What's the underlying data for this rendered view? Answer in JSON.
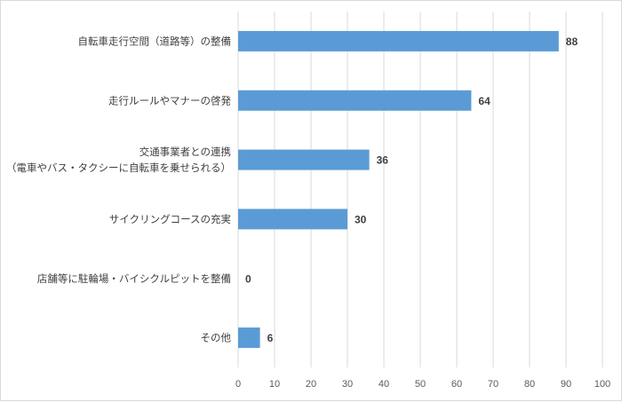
{
  "chart_data": {
    "type": "bar",
    "orientation": "horizontal",
    "categories": [
      [
        "自転車走行空間（道路等）の整備"
      ],
      [
        "走行ルールやマナーの啓発"
      ],
      [
        "交通事業者との連携",
        "（電車やバス・タクシーに自転車を乗せられる）"
      ],
      [
        "サイクリングコースの充実"
      ],
      [
        "店舗等に駐輪場・バイシクルピットを整備"
      ],
      [
        "その他"
      ]
    ],
    "values": [
      88,
      64,
      36,
      30,
      0,
      6
    ],
    "data_labels": [
      "88",
      "64",
      "36",
      "30",
      "0",
      "6"
    ],
    "xlim": [
      0,
      100
    ],
    "x_ticks": [
      0,
      10,
      20,
      30,
      40,
      50,
      60,
      70,
      80,
      90,
      100
    ],
    "title": "",
    "xlabel": "",
    "ylabel": "",
    "grid": true,
    "legend": "none",
    "bar_color": "#5b9bd5",
    "grid_color": "#d9d9d9",
    "text_color": "#404040"
  }
}
